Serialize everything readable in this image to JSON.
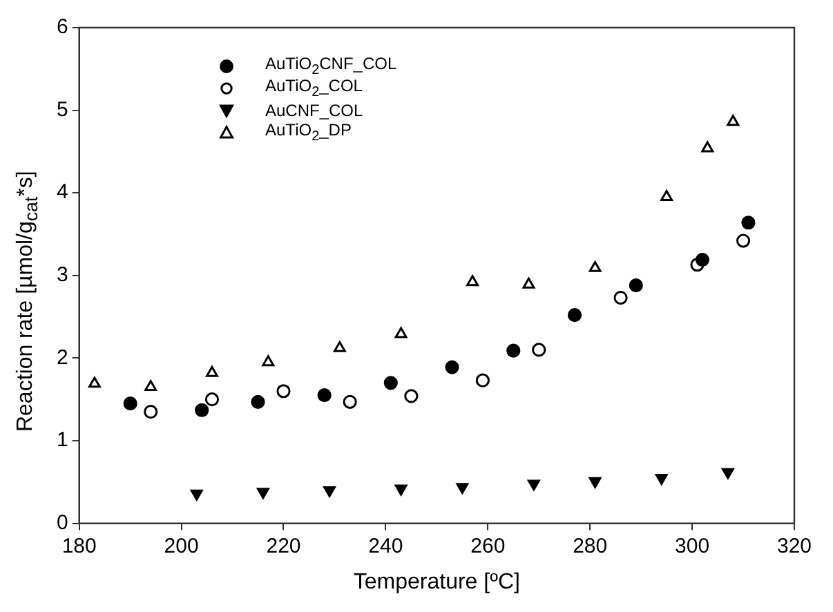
{
  "chart_data": {
    "type": "scatter",
    "xlabel": "Temperature [ºC]",
    "ylabel": "Reaction rate [µmol/g$_{cat}$*s]",
    "xlim": [
      180,
      320
    ],
    "xticks": [
      180,
      200,
      220,
      240,
      260,
      280,
      300,
      320
    ],
    "ylim": [
      0,
      6
    ],
    "yticks": [
      0,
      1,
      2,
      3,
      4,
      5,
      6
    ],
    "grid": false,
    "legend": "top left",
    "series": [
      {
        "name": "AuTiO$_{2}$CNF_COL",
        "color": "#000000",
        "marker": "circle",
        "x": [
          190,
          204,
          215,
          228,
          241,
          253,
          265,
          277,
          289,
          302,
          311
        ],
        "values": [
          1.45,
          1.37,
          1.47,
          1.55,
          1.7,
          1.89,
          2.09,
          2.52,
          2.88,
          3.19,
          3.64
        ]
      },
      {
        "name": "AuTiO$_{2}$_COL",
        "color": "#000000",
        "marker": "circle-open",
        "x": [
          194,
          206,
          220,
          233,
          245,
          259,
          270,
          286,
          301,
          310
        ],
        "values": [
          1.35,
          1.5,
          1.6,
          1.47,
          1.54,
          1.73,
          2.1,
          2.73,
          3.13,
          3.42
        ]
      },
      {
        "name": "AuCNF_COL",
        "color": "#000000",
        "marker": "triangle-down",
        "x": [
          203,
          216,
          229,
          243,
          255,
          269,
          281,
          294,
          307
        ],
        "values": [
          0.36,
          0.38,
          0.4,
          0.42,
          0.44,
          0.48,
          0.51,
          0.55,
          0.62
        ]
      },
      {
        "name": "AuTiO$_{2}$_DP",
        "color": "#000000",
        "marker": "triangle-open",
        "x": [
          183,
          194,
          206,
          217,
          231,
          243,
          257,
          268,
          281,
          295,
          303,
          308
        ],
        "values": [
          1.69,
          1.65,
          1.82,
          1.95,
          2.12,
          2.29,
          2.92,
          2.89,
          3.09,
          3.95,
          4.54,
          4.86
        ]
      }
    ]
  }
}
